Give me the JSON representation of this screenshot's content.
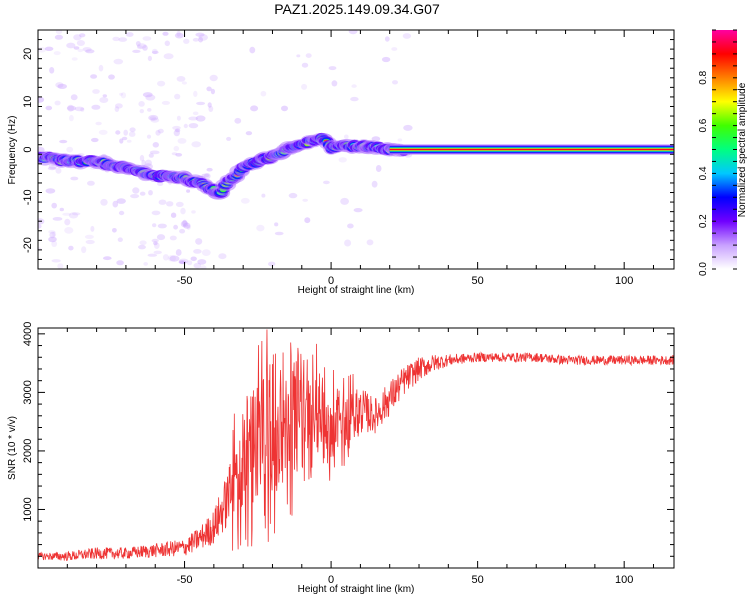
{
  "title": "PAZ1.2025.149.09.34.G07",
  "chart_data": [
    {
      "type": "heatmap",
      "xlabel": "Height of straight line (km)",
      "ylabel": "Frequency (Hz)",
      "xlim": [
        -100,
        117
      ],
      "ylim": [
        -25,
        25
      ],
      "xticks": [
        "-50",
        "0",
        "50",
        "100"
      ],
      "xtick_values": [
        -50,
        0,
        50,
        100
      ],
      "yticks": [
        "20",
        "10",
        "0",
        "-10",
        "-20"
      ],
      "ytick_values": [
        20,
        10,
        0,
        -10,
        -20
      ],
      "ridge": {
        "description_points_x": [
          -100,
          -90,
          -80,
          -70,
          -60,
          -50,
          -45,
          -40,
          -38,
          -35,
          -30,
          -25,
          -20,
          -15,
          -10,
          -5,
          -3,
          0,
          5,
          10,
          15,
          20,
          25,
          30,
          50,
          75,
          100,
          117
        ],
        "description_points_y": [
          -1.5,
          -2.5,
          -2.5,
          -4,
          -5.5,
          -6,
          -7,
          -8.5,
          -9,
          -7,
          -4,
          -2.5,
          -1.5,
          0,
          1,
          2,
          2.5,
          0.5,
          1,
          0.5,
          0.5,
          0,
          0,
          0,
          0,
          0,
          0,
          0
        ]
      },
      "stable_line": {
        "x_start": 20,
        "x_end": 117,
        "y": 0
      },
      "colorbar": {
        "label": "Normalized spectral amplitude",
        "ticks": [
          "0.0",
          "0.2",
          "0.4",
          "0.6",
          "0.8"
        ],
        "tick_values": [
          0,
          0.2,
          0.4,
          0.6,
          0.8
        ],
        "range": [
          0,
          1
        ],
        "colors": [
          "#ffffff",
          "#c8a0ff",
          "#7000ff",
          "#0000ff",
          "#00c8ff",
          "#00ff80",
          "#40ff00",
          "#ffff00",
          "#ff8000",
          "#ff0000",
          "#ff00a0"
        ]
      }
    },
    {
      "type": "line",
      "xlabel": "Height of straight line (km)",
      "ylabel": "SNR (10 * v/v)",
      "xlim": [
        -100,
        117
      ],
      "ylim": [
        0,
        4100
      ],
      "xticks": [
        "-50",
        "0",
        "50",
        "100"
      ],
      "xtick_values": [
        -50,
        0,
        50,
        100
      ],
      "yticks": [
        "1000",
        "2000",
        "3000",
        "4000"
      ],
      "ytick_values": [
        1000,
        2000,
        3000,
        4000
      ],
      "color": "#ee3333",
      "envelope_x": [
        -100,
        -90,
        -80,
        -70,
        -60,
        -50,
        -45,
        -40,
        -35,
        -30,
        -25,
        -20,
        -15,
        -10,
        -5,
        0,
        5,
        10,
        15,
        20,
        25,
        30,
        35,
        40,
        50,
        60,
        70,
        80,
        90,
        100,
        110,
        117
      ],
      "envelope_y": [
        200,
        200,
        250,
        250,
        300,
        350,
        500,
        700,
        1200,
        1800,
        2200,
        2400,
        2400,
        2500,
        2700,
        2200,
        2500,
        2700,
        2600,
        2900,
        3200,
        3400,
        3500,
        3550,
        3600,
        3600,
        3600,
        3550,
        3550,
        3550,
        3550,
        3550
      ],
      "noise_amplitude": [
        60,
        80,
        100,
        100,
        120,
        150,
        200,
        300,
        500,
        900,
        1000,
        1100,
        900,
        800,
        600,
        600,
        400,
        400,
        300,
        300,
        250,
        200,
        150,
        100,
        80,
        80,
        80,
        80,
        80,
        80,
        80,
        80
      ]
    }
  ]
}
